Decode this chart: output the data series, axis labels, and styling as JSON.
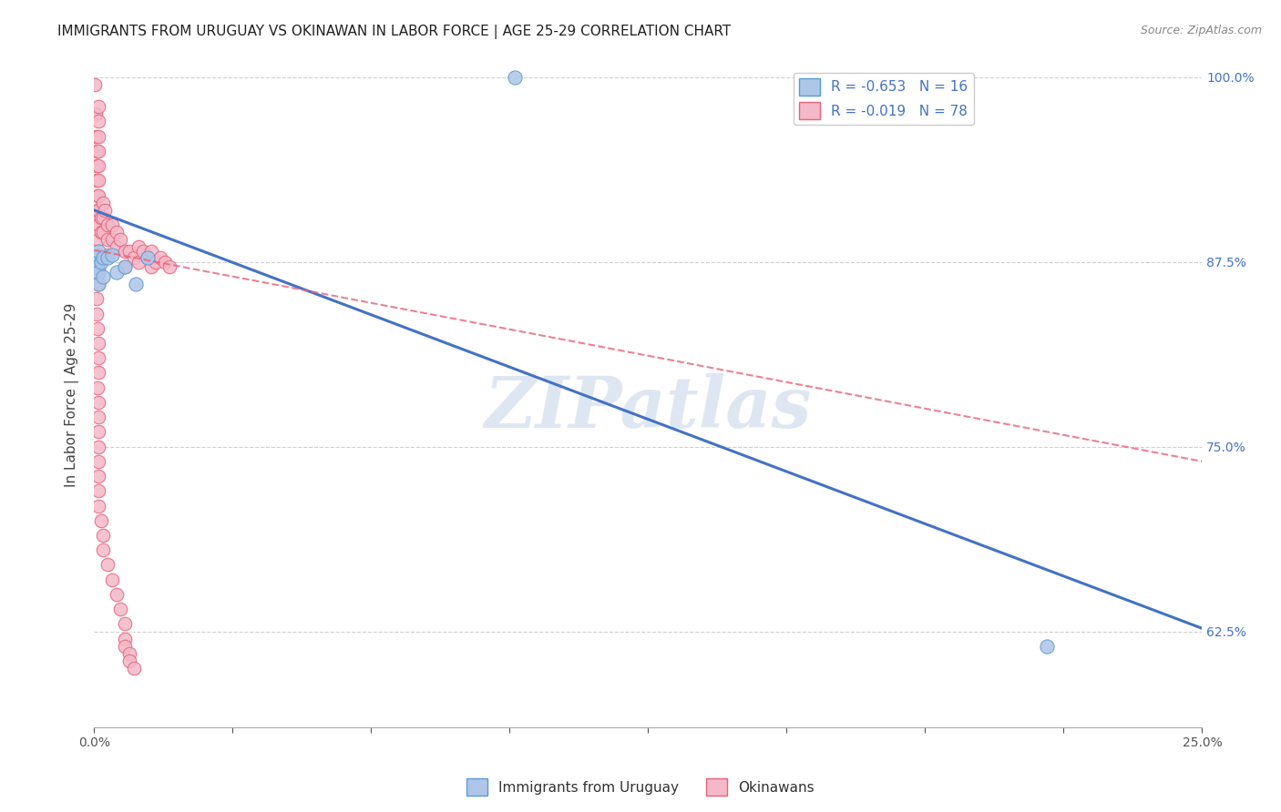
{
  "title": "IMMIGRANTS FROM URUGUAY VS OKINAWAN IN LABOR FORCE | AGE 25-29 CORRELATION CHART",
  "source": "Source: ZipAtlas.com",
  "ylabel": "In Labor Force | Age 25-29",
  "xlim": [
    0.0,
    0.25
  ],
  "ylim": [
    0.56,
    1.01
  ],
  "xticks": [
    0.0,
    0.03125,
    0.0625,
    0.09375,
    0.125,
    0.15625,
    0.1875,
    0.21875,
    0.25
  ],
  "xticklabels": [
    "0.0%",
    "",
    "",
    "",
    "",
    "",
    "",
    "",
    "25.0%"
  ],
  "yticks": [
    0.625,
    0.75,
    0.875,
    1.0
  ],
  "right_yticklabels": [
    "62.5%",
    "75.0%",
    "87.5%",
    "100.0%"
  ],
  "uruguay_color": "#aec6e8",
  "okinawan_color": "#f4b8c8",
  "uruguay_edge_color": "#5b9bd5",
  "okinawan_edge_color": "#e8627a",
  "trend_blue": "#4472c4",
  "trend_pink": "#e8627a",
  "legend_blue_fill": "#aec6e8",
  "legend_pink_fill": "#f4b8c8",
  "R_uruguay": -0.653,
  "N_uruguay": 16,
  "R_okinawan": -0.019,
  "N_okinawan": 78,
  "watermark": "ZIPatlas",
  "watermark_color": "#c8d8e8",
  "blue_line_x": [
    0.0,
    0.25
  ],
  "blue_line_y": [
    0.91,
    0.627
  ],
  "pink_line_x": [
    0.0,
    0.25
  ],
  "pink_line_y": [
    0.883,
    0.74
  ],
  "uruguay_x": [
    0.0005,
    0.0008,
    0.001,
    0.001,
    0.001,
    0.0015,
    0.002,
    0.002,
    0.003,
    0.004,
    0.005,
    0.007,
    0.0095,
    0.012,
    0.095,
    0.215
  ],
  "uruguay_y": [
    0.878,
    0.872,
    0.868,
    0.882,
    0.86,
    0.875,
    0.878,
    0.865,
    0.878,
    0.88,
    0.868,
    0.872,
    0.86,
    0.878,
    1.0,
    0.615
  ],
  "okinawan_x": [
    0.0002,
    0.0003,
    0.0004,
    0.0005,
    0.0005,
    0.0006,
    0.0007,
    0.0008,
    0.0009,
    0.001,
    0.001,
    0.001,
    0.001,
    0.001,
    0.001,
    0.001,
    0.001,
    0.001,
    0.001,
    0.001,
    0.001,
    0.001,
    0.0015,
    0.0015,
    0.002,
    0.002,
    0.002,
    0.0025,
    0.003,
    0.003,
    0.003,
    0.004,
    0.004,
    0.005,
    0.005,
    0.006,
    0.007,
    0.007,
    0.008,
    0.009,
    0.01,
    0.01,
    0.011,
    0.012,
    0.013,
    0.013,
    0.014,
    0.015,
    0.016,
    0.017,
    0.0005,
    0.0006,
    0.0007,
    0.001,
    0.001,
    0.001,
    0.0008,
    0.0009,
    0.001,
    0.001,
    0.001,
    0.001,
    0.001,
    0.001,
    0.001,
    0.0015,
    0.002,
    0.002,
    0.003,
    0.004,
    0.005,
    0.006,
    0.007,
    0.007,
    0.007,
    0.008,
    0.008,
    0.009
  ],
  "okinawan_y": [
    0.995,
    0.975,
    0.96,
    0.95,
    0.94,
    0.93,
    0.92,
    0.91,
    0.905,
    0.98,
    0.97,
    0.96,
    0.95,
    0.94,
    0.93,
    0.92,
    0.91,
    0.9,
    0.89,
    0.88,
    0.87,
    0.86,
    0.905,
    0.895,
    0.915,
    0.905,
    0.895,
    0.91,
    0.9,
    0.89,
    0.88,
    0.9,
    0.89,
    0.895,
    0.885,
    0.89,
    0.882,
    0.872,
    0.882,
    0.878,
    0.885,
    0.875,
    0.882,
    0.878,
    0.882,
    0.872,
    0.875,
    0.878,
    0.875,
    0.872,
    0.85,
    0.84,
    0.83,
    0.82,
    0.81,
    0.8,
    0.79,
    0.78,
    0.77,
    0.76,
    0.75,
    0.74,
    0.73,
    0.72,
    0.71,
    0.7,
    0.69,
    0.68,
    0.67,
    0.66,
    0.65,
    0.64,
    0.63,
    0.62,
    0.615,
    0.61,
    0.605,
    0.6
  ]
}
